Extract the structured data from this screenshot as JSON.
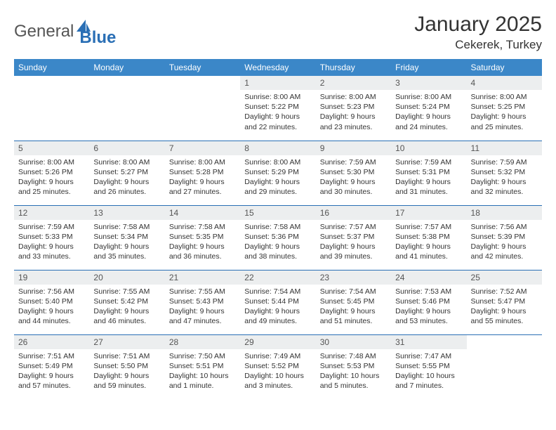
{
  "logo": {
    "text1": "General",
    "text2": "Blue",
    "shape_color": "#2a6fb5"
  },
  "title": "January 2025",
  "location": "Cekerek, Turkey",
  "header_bg": "#3b87c8",
  "header_fg": "#ffffff",
  "daynum_bg": "#eceeef",
  "border_color": "#2a6fb5",
  "text_color": "#333333",
  "font_family": "Arial",
  "days_of_week": [
    "Sunday",
    "Monday",
    "Tuesday",
    "Wednesday",
    "Thursday",
    "Friday",
    "Saturday"
  ],
  "weeks": [
    [
      {
        "n": "",
        "sr": "",
        "ss": "",
        "dl": ""
      },
      {
        "n": "",
        "sr": "",
        "ss": "",
        "dl": ""
      },
      {
        "n": "",
        "sr": "",
        "ss": "",
        "dl": ""
      },
      {
        "n": "1",
        "sr": "Sunrise: 8:00 AM",
        "ss": "Sunset: 5:22 PM",
        "dl": "Daylight: 9 hours and 22 minutes."
      },
      {
        "n": "2",
        "sr": "Sunrise: 8:00 AM",
        "ss": "Sunset: 5:23 PM",
        "dl": "Daylight: 9 hours and 23 minutes."
      },
      {
        "n": "3",
        "sr": "Sunrise: 8:00 AM",
        "ss": "Sunset: 5:24 PM",
        "dl": "Daylight: 9 hours and 24 minutes."
      },
      {
        "n": "4",
        "sr": "Sunrise: 8:00 AM",
        "ss": "Sunset: 5:25 PM",
        "dl": "Daylight: 9 hours and 25 minutes."
      }
    ],
    [
      {
        "n": "5",
        "sr": "Sunrise: 8:00 AM",
        "ss": "Sunset: 5:26 PM",
        "dl": "Daylight: 9 hours and 25 minutes."
      },
      {
        "n": "6",
        "sr": "Sunrise: 8:00 AM",
        "ss": "Sunset: 5:27 PM",
        "dl": "Daylight: 9 hours and 26 minutes."
      },
      {
        "n": "7",
        "sr": "Sunrise: 8:00 AM",
        "ss": "Sunset: 5:28 PM",
        "dl": "Daylight: 9 hours and 27 minutes."
      },
      {
        "n": "8",
        "sr": "Sunrise: 8:00 AM",
        "ss": "Sunset: 5:29 PM",
        "dl": "Daylight: 9 hours and 29 minutes."
      },
      {
        "n": "9",
        "sr": "Sunrise: 7:59 AM",
        "ss": "Sunset: 5:30 PM",
        "dl": "Daylight: 9 hours and 30 minutes."
      },
      {
        "n": "10",
        "sr": "Sunrise: 7:59 AM",
        "ss": "Sunset: 5:31 PM",
        "dl": "Daylight: 9 hours and 31 minutes."
      },
      {
        "n": "11",
        "sr": "Sunrise: 7:59 AM",
        "ss": "Sunset: 5:32 PM",
        "dl": "Daylight: 9 hours and 32 minutes."
      }
    ],
    [
      {
        "n": "12",
        "sr": "Sunrise: 7:59 AM",
        "ss": "Sunset: 5:33 PM",
        "dl": "Daylight: 9 hours and 33 minutes."
      },
      {
        "n": "13",
        "sr": "Sunrise: 7:58 AM",
        "ss": "Sunset: 5:34 PM",
        "dl": "Daylight: 9 hours and 35 minutes."
      },
      {
        "n": "14",
        "sr": "Sunrise: 7:58 AM",
        "ss": "Sunset: 5:35 PM",
        "dl": "Daylight: 9 hours and 36 minutes."
      },
      {
        "n": "15",
        "sr": "Sunrise: 7:58 AM",
        "ss": "Sunset: 5:36 PM",
        "dl": "Daylight: 9 hours and 38 minutes."
      },
      {
        "n": "16",
        "sr": "Sunrise: 7:57 AM",
        "ss": "Sunset: 5:37 PM",
        "dl": "Daylight: 9 hours and 39 minutes."
      },
      {
        "n": "17",
        "sr": "Sunrise: 7:57 AM",
        "ss": "Sunset: 5:38 PM",
        "dl": "Daylight: 9 hours and 41 minutes."
      },
      {
        "n": "18",
        "sr": "Sunrise: 7:56 AM",
        "ss": "Sunset: 5:39 PM",
        "dl": "Daylight: 9 hours and 42 minutes."
      }
    ],
    [
      {
        "n": "19",
        "sr": "Sunrise: 7:56 AM",
        "ss": "Sunset: 5:40 PM",
        "dl": "Daylight: 9 hours and 44 minutes."
      },
      {
        "n": "20",
        "sr": "Sunrise: 7:55 AM",
        "ss": "Sunset: 5:42 PM",
        "dl": "Daylight: 9 hours and 46 minutes."
      },
      {
        "n": "21",
        "sr": "Sunrise: 7:55 AM",
        "ss": "Sunset: 5:43 PM",
        "dl": "Daylight: 9 hours and 47 minutes."
      },
      {
        "n": "22",
        "sr": "Sunrise: 7:54 AM",
        "ss": "Sunset: 5:44 PM",
        "dl": "Daylight: 9 hours and 49 minutes."
      },
      {
        "n": "23",
        "sr": "Sunrise: 7:54 AM",
        "ss": "Sunset: 5:45 PM",
        "dl": "Daylight: 9 hours and 51 minutes."
      },
      {
        "n": "24",
        "sr": "Sunrise: 7:53 AM",
        "ss": "Sunset: 5:46 PM",
        "dl": "Daylight: 9 hours and 53 minutes."
      },
      {
        "n": "25",
        "sr": "Sunrise: 7:52 AM",
        "ss": "Sunset: 5:47 PM",
        "dl": "Daylight: 9 hours and 55 minutes."
      }
    ],
    [
      {
        "n": "26",
        "sr": "Sunrise: 7:51 AM",
        "ss": "Sunset: 5:49 PM",
        "dl": "Daylight: 9 hours and 57 minutes."
      },
      {
        "n": "27",
        "sr": "Sunrise: 7:51 AM",
        "ss": "Sunset: 5:50 PM",
        "dl": "Daylight: 9 hours and 59 minutes."
      },
      {
        "n": "28",
        "sr": "Sunrise: 7:50 AM",
        "ss": "Sunset: 5:51 PM",
        "dl": "Daylight: 10 hours and 1 minute."
      },
      {
        "n": "29",
        "sr": "Sunrise: 7:49 AM",
        "ss": "Sunset: 5:52 PM",
        "dl": "Daylight: 10 hours and 3 minutes."
      },
      {
        "n": "30",
        "sr": "Sunrise: 7:48 AM",
        "ss": "Sunset: 5:53 PM",
        "dl": "Daylight: 10 hours and 5 minutes."
      },
      {
        "n": "31",
        "sr": "Sunrise: 7:47 AM",
        "ss": "Sunset: 5:55 PM",
        "dl": "Daylight: 10 hours and 7 minutes."
      },
      {
        "n": "",
        "sr": "",
        "ss": "",
        "dl": ""
      }
    ]
  ]
}
